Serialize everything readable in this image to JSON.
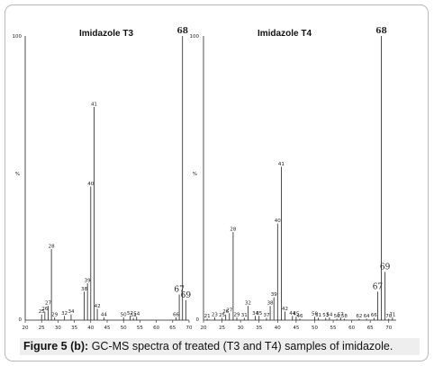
{
  "caption": {
    "label": "Figure 5 (b):",
    "text": " GC-MS spectra of treated (T3 and T4) samples of imidazole."
  },
  "chart_data": [
    {
      "type": "bar",
      "title": "Imidazole T3",
      "ylabel": "%",
      "ylim": [
        0,
        100
      ],
      "y_tick_labels": [
        "100",
        "0"
      ],
      "xlim": [
        20,
        70
      ],
      "x_ticks": [
        20,
        25,
        30,
        35,
        40,
        45,
        50,
        55,
        60,
        65,
        70
      ],
      "peaks": [
        {
          "x": 25,
          "y": 2,
          "label": "25"
        },
        {
          "x": 26,
          "y": 3,
          "label": "26"
        },
        {
          "x": 27,
          "y": 5,
          "label": "27"
        },
        {
          "x": 28,
          "y": 25,
          "label": "28"
        },
        {
          "x": 29,
          "y": 1,
          "label": "29"
        },
        {
          "x": 32,
          "y": 1.5,
          "label": "32"
        },
        {
          "x": 34,
          "y": 2,
          "label": "34"
        },
        {
          "x": 38,
          "y": 10,
          "label": "38"
        },
        {
          "x": 39,
          "y": 13,
          "label": "39"
        },
        {
          "x": 40,
          "y": 47,
          "label": "40"
        },
        {
          "x": 41,
          "y": 75,
          "label": "41"
        },
        {
          "x": 42,
          "y": 4,
          "label": "42"
        },
        {
          "x": 44,
          "y": 1,
          "label": "44"
        },
        {
          "x": 50,
          "y": 1,
          "label": "50"
        },
        {
          "x": 52,
          "y": 1.5,
          "label": "52"
        },
        {
          "x": 53,
          "y": 0.8,
          "label": "53"
        },
        {
          "x": 54,
          "y": 1.2,
          "label": "54"
        },
        {
          "x": 66,
          "y": 1,
          "label": "66"
        },
        {
          "x": 67,
          "y": 9,
          "label": "67",
          "large": true
        },
        {
          "x": 68,
          "y": 100,
          "label": "68",
          "large": true,
          "bold": true
        },
        {
          "x": 69,
          "y": 7,
          "label": "69",
          "large": true
        }
      ]
    },
    {
      "type": "bar",
      "title": "Imidazole T4",
      "ylabel": "%",
      "ylim": [
        0,
        100
      ],
      "y_tick_labels": [
        "100",
        "0"
      ],
      "xlim": [
        20,
        72
      ],
      "x_ticks": [
        20,
        25,
        30,
        35,
        40,
        45,
        50,
        55,
        60,
        65,
        70
      ],
      "peaks": [
        {
          "x": 21,
          "y": 0.5,
          "label": "21"
        },
        {
          "x": 23,
          "y": 1,
          "label": "23"
        },
        {
          "x": 25,
          "y": 0.8,
          "label": "25"
        },
        {
          "x": 26,
          "y": 2,
          "label": "26"
        },
        {
          "x": 27,
          "y": 2.5,
          "label": "27"
        },
        {
          "x": 28,
          "y": 31,
          "label": "28"
        },
        {
          "x": 29,
          "y": 1,
          "label": "29"
        },
        {
          "x": 31,
          "y": 0.8,
          "label": "31"
        },
        {
          "x": 32,
          "y": 5,
          "label": "32"
        },
        {
          "x": 34,
          "y": 1.5,
          "label": "34"
        },
        {
          "x": 35,
          "y": 1.5,
          "label": "35"
        },
        {
          "x": 37,
          "y": 0.8,
          "label": "37"
        },
        {
          "x": 38,
          "y": 5,
          "label": "38"
        },
        {
          "x": 39,
          "y": 8,
          "label": "39"
        },
        {
          "x": 40,
          "y": 34,
          "label": "40"
        },
        {
          "x": 41,
          "y": 54,
          "label": "41"
        },
        {
          "x": 42,
          "y": 3,
          "label": "42"
        },
        {
          "x": 44,
          "y": 1.5,
          "label": "44"
        },
        {
          "x": 45,
          "y": 1.2,
          "label": "45"
        },
        {
          "x": 46,
          "y": 0.5,
          "label": "46"
        },
        {
          "x": 50,
          "y": 1.2,
          "label": "50"
        },
        {
          "x": 51,
          "y": 0.8,
          "label": "51"
        },
        {
          "x": 53,
          "y": 0.8,
          "label": "53"
        },
        {
          "x": 54,
          "y": 1,
          "label": "54"
        },
        {
          "x": 56,
          "y": 0.5,
          "label": "56"
        },
        {
          "x": 57,
          "y": 1,
          "label": "57"
        },
        {
          "x": 58,
          "y": 0.5,
          "label": "58"
        },
        {
          "x": 62,
          "y": 0.5,
          "label": "62"
        },
        {
          "x": 64,
          "y": 0.5,
          "label": "64"
        },
        {
          "x": 66,
          "y": 0.8,
          "label": "66"
        },
        {
          "x": 67,
          "y": 10,
          "label": "67",
          "large": true
        },
        {
          "x": 68,
          "y": 100,
          "label": "68",
          "large": true,
          "bold": true
        },
        {
          "x": 69,
          "y": 17,
          "label": "69",
          "large": true
        },
        {
          "x": 70,
          "y": 0.5,
          "label": "70"
        },
        {
          "x": 71,
          "y": 1,
          "label": "71"
        }
      ]
    }
  ]
}
